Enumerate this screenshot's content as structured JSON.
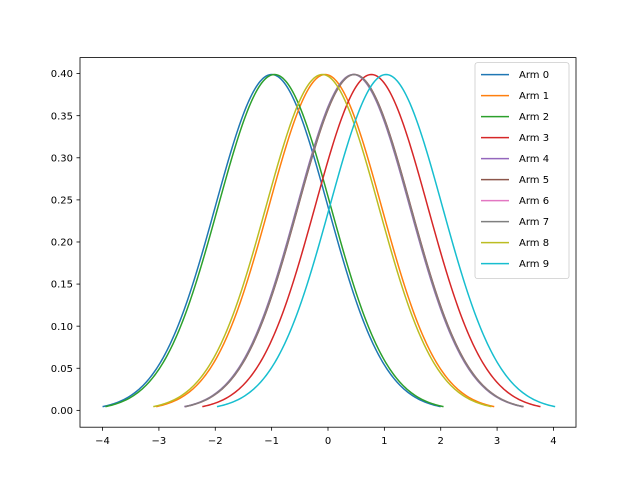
{
  "chart_data": {
    "type": "line",
    "title": "",
    "xlabel": "",
    "ylabel": "",
    "xlim": [
      -4.4,
      4.4
    ],
    "ylim": [
      -0.02,
      0.419
    ],
    "xticks": [
      -4,
      -3,
      -2,
      -1,
      0,
      1,
      2,
      3,
      4
    ],
    "xtick_labels": [
      "−4",
      "−3",
      "−2",
      "−1",
      "0",
      "1",
      "2",
      "3",
      "4"
    ],
    "yticks": [
      0.0,
      0.05,
      0.1,
      0.15,
      0.2,
      0.25,
      0.3,
      0.35,
      0.4
    ],
    "ytick_labels": [
      "0.00",
      "0.05",
      "0.10",
      "0.15",
      "0.20",
      "0.25",
      "0.30",
      "0.35",
      "0.40"
    ],
    "grid": false,
    "legend_position": "top-right",
    "series": [
      {
        "name": "Arm 0",
        "mean": -1.0,
        "std": 1.0,
        "x_range": [
          -4.0,
          2.0
        ],
        "color": "#1f77b4"
      },
      {
        "name": "Arm 1",
        "mean": -0.05,
        "std": 1.0,
        "x_range": [
          -3.05,
          2.95
        ],
        "color": "#ff7f0e"
      },
      {
        "name": "Arm 2",
        "mean": -0.95,
        "std": 1.0,
        "x_range": [
          -3.95,
          2.05
        ],
        "color": "#2ca02c"
      },
      {
        "name": "Arm 3",
        "mean": 0.77,
        "std": 1.0,
        "x_range": [
          -2.23,
          3.77
        ],
        "color": "#d62728"
      },
      {
        "name": "Arm 4",
        "mean": 0.45,
        "std": 1.0,
        "x_range": [
          -2.55,
          3.45
        ],
        "color": "#9467bd"
      },
      {
        "name": "Arm 5",
        "mean": 0.47,
        "std": 1.0,
        "x_range": [
          -2.53,
          3.47
        ],
        "color": "#8c564b"
      },
      {
        "name": "Arm 6",
        "mean": 0.46,
        "std": 1.0,
        "x_range": [
          -2.54,
          3.46
        ],
        "color": "#e377c2"
      },
      {
        "name": "Arm 7",
        "mean": 0.46,
        "std": 1.0,
        "x_range": [
          -2.54,
          3.46
        ],
        "color": "#7f7f7f"
      },
      {
        "name": "Arm 8",
        "mean": -0.1,
        "std": 1.0,
        "x_range": [
          -3.1,
          2.9
        ],
        "color": "#bcbd22"
      },
      {
        "name": "Arm 9",
        "mean": 1.03,
        "std": 1.0,
        "x_range": [
          -1.97,
          4.03
        ],
        "color": "#17becf"
      }
    ]
  }
}
